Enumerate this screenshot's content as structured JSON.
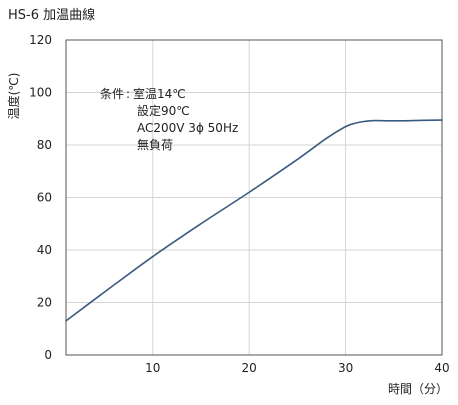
{
  "chart_data": {
    "type": "line",
    "title": "HS-6 加温曲線",
    "xlabel": "時間（分）",
    "ylabel": "温度(℃)",
    "xlim": [
      1,
      40
    ],
    "ylim": [
      0,
      120
    ],
    "xticks": [
      10,
      20,
      30,
      40
    ],
    "yticks": [
      0,
      20,
      40,
      60,
      80,
      100,
      120
    ],
    "grid": true,
    "legend": "none",
    "series": [
      {
        "color": "#3a5a80",
        "x": [
          1,
          5,
          10,
          15,
          20,
          25,
          28,
          30,
          31,
          32,
          33,
          35,
          38,
          40
        ],
        "y": [
          13,
          24,
          37.5,
          50,
          62,
          74.5,
          82.5,
          87,
          88.3,
          89,
          89.3,
          89.2,
          89.4,
          89.5
        ]
      }
    ],
    "annotations": {
      "conditions_label": "条件",
      "separator": ":",
      "lines": [
        "室温14℃",
        "設定90℃",
        "AC200V 3ϕ 50Hz",
        "無負荷"
      ]
    }
  }
}
